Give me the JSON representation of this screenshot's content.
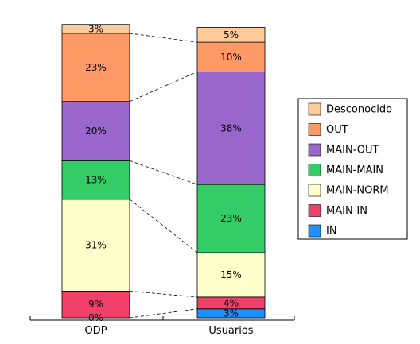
{
  "chart_data": {
    "type": "bar",
    "stacked": true,
    "percent": true,
    "categories": [
      "ODP",
      "Usuarios"
    ],
    "series": [
      {
        "name": "IN",
        "color": "#1e90ff",
        "values": [
          0,
          3
        ]
      },
      {
        "name": "MAIN-IN",
        "color": "#f0406a",
        "values": [
          9,
          4
        ]
      },
      {
        "name": "MAIN-NORM",
        "color": "#ffffcc",
        "values": [
          31,
          15
        ]
      },
      {
        "name": "MAIN-MAIN",
        "color": "#33cc66",
        "values": [
          13,
          23
        ]
      },
      {
        "name": "MAIN-OUT",
        "color": "#9966cc",
        "values": [
          20,
          38
        ]
      },
      {
        "name": "OUT",
        "color": "#ff9966",
        "values": [
          23,
          10
        ]
      },
      {
        "name": "Desconocido",
        "color": "#ffcc99",
        "values": [
          3,
          5
        ]
      }
    ],
    "segment_labels": [
      [
        "0%",
        "9%",
        "31%",
        "13%",
        "20%",
        "23%",
        "3%"
      ],
      [
        "3%",
        "4%",
        "15%",
        "23%",
        "38%",
        "10%",
        "5%"
      ]
    ],
    "legend_order": [
      "Desconocido",
      "OUT",
      "MAIN-OUT",
      "MAIN-MAIN",
      "MAIN-NORM",
      "MAIN-IN",
      "IN"
    ],
    "legend_position": "right",
    "connector_lines": true,
    "ylim": [
      0,
      100
    ],
    "grid": false,
    "title": "",
    "xlabel": "",
    "ylabel": ""
  }
}
